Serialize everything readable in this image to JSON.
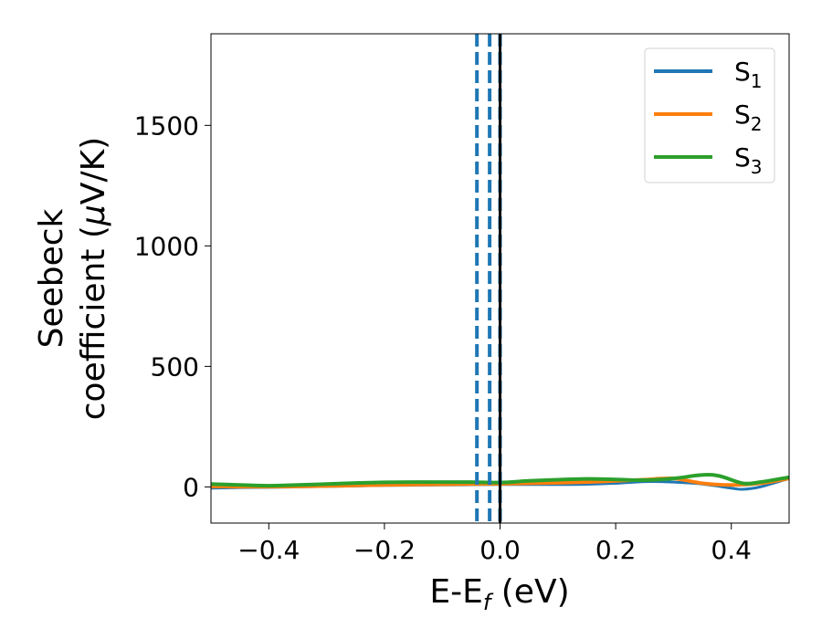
{
  "chart_data": {
    "type": "line",
    "xlabel": {
      "main": "E-E",
      "sub": "f",
      "unit": " (eV)"
    },
    "ylabel": {
      "line1": "Seebeck",
      "line2_prefix": "coefficient  (",
      "mu": "μ",
      "line2_suffix": "V/K)"
    },
    "xlim": [
      -0.5,
      0.5
    ],
    "ylim": [
      -150,
      1880
    ],
    "xticks": [
      -0.4,
      -0.2,
      0.0,
      0.2,
      0.4
    ],
    "xtick_labels": [
      "−0.4",
      "−0.2",
      "0.0",
      "0.2",
      "0.4"
    ],
    "yticks": [
      0,
      500,
      1000,
      1500
    ],
    "ytick_labels": [
      "0",
      "500",
      "1000",
      "1500"
    ],
    "grid": false,
    "legend_position": "top-right",
    "vertical_lines": [
      {
        "x": -0.04,
        "style": "dashed",
        "color": "#1f77b4"
      },
      {
        "x": -0.018,
        "style": "dashed",
        "color": "#1f77b4"
      },
      {
        "x": 0.0,
        "style": "dashed",
        "color": "#1f77b4"
      },
      {
        "x": 0.0,
        "style": "solid",
        "color": "#000000"
      }
    ],
    "series": [
      {
        "name": "S",
        "sub": "1",
        "color": "#1f77b4",
        "width": 3,
        "x": [
          -0.5,
          -0.45,
          -0.4,
          -0.35,
          -0.3,
          -0.25,
          -0.2,
          -0.15,
          -0.1,
          -0.05,
          0.0,
          0.05,
          0.1,
          0.15,
          0.2,
          0.25,
          0.3,
          0.35,
          0.4,
          0.42,
          0.45,
          0.5
        ],
        "y": [
          -5,
          -3,
          -2,
          0,
          2,
          4,
          6,
          7,
          8,
          9,
          10,
          10,
          10,
          11,
          15,
          22,
          20,
          12,
          -5,
          -10,
          0,
          35
        ]
      },
      {
        "name": "S",
        "sub": "2",
        "color": "#ff7f0e",
        "width": 4,
        "x": [
          -0.5,
          -0.45,
          -0.4,
          -0.35,
          -0.3,
          -0.25,
          -0.2,
          -0.15,
          -0.1,
          -0.05,
          0.0,
          0.05,
          0.1,
          0.15,
          0.2,
          0.25,
          0.3,
          0.35,
          0.4,
          0.45,
          0.5
        ],
        "y": [
          2,
          1,
          1,
          2,
          4,
          6,
          8,
          10,
          11,
          12,
          13,
          15,
          17,
          20,
          25,
          30,
          35,
          15,
          8,
          15,
          35
        ]
      },
      {
        "name": "S",
        "sub": "3",
        "color": "#2ca02c",
        "width": 4,
        "x": [
          -0.5,
          -0.45,
          -0.4,
          -0.35,
          -0.3,
          -0.25,
          -0.2,
          -0.15,
          -0.1,
          -0.05,
          0.0,
          0.05,
          0.1,
          0.15,
          0.2,
          0.25,
          0.3,
          0.35,
          0.38,
          0.42,
          0.45,
          0.5
        ],
        "y": [
          12,
          8,
          5,
          8,
          12,
          16,
          19,
          20,
          20,
          20,
          18,
          25,
          30,
          33,
          31,
          28,
          35,
          50,
          45,
          15,
          20,
          40
        ]
      }
    ]
  }
}
